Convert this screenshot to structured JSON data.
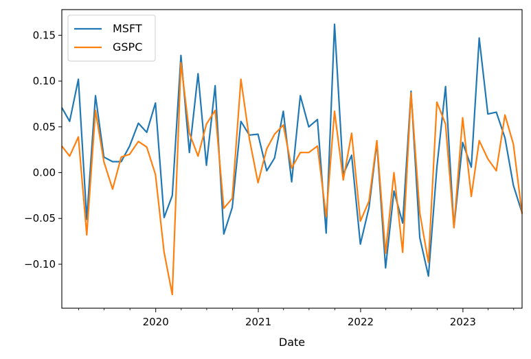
{
  "chart_data": {
    "type": "line",
    "xlabel": "Date",
    "ylabel": "",
    "ylim": [
      -0.148,
      0.178
    ],
    "xlim": [
      "2019-01-31",
      "2023-07-31"
    ],
    "x_tick_labels": [
      {
        "date": "2020-01-01",
        "label": "2020"
      },
      {
        "date": "2021-01-01",
        "label": "2021"
      },
      {
        "date": "2022-01-01",
        "label": "2022"
      },
      {
        "date": "2023-01-01",
        "label": "2023"
      }
    ],
    "y_ticks": [
      -0.1,
      -0.05,
      0.0,
      0.05,
      0.1,
      0.15
    ],
    "y_tick_labels": [
      "−0.10",
      "−0.05",
      "0.00",
      "0.05",
      "0.10",
      "0.15"
    ],
    "legend_position": "top-left",
    "grid": false,
    "x": [
      "2019-01-31",
      "2019-02-28",
      "2019-03-31",
      "2019-04-30",
      "2019-05-31",
      "2019-06-30",
      "2019-07-31",
      "2019-08-31",
      "2019-09-30",
      "2019-10-31",
      "2019-11-30",
      "2019-12-31",
      "2020-01-31",
      "2020-02-29",
      "2020-03-31",
      "2020-04-30",
      "2020-05-31",
      "2020-06-30",
      "2020-07-31",
      "2020-08-31",
      "2020-09-30",
      "2020-10-31",
      "2020-11-30",
      "2020-12-31",
      "2021-01-31",
      "2021-02-28",
      "2021-03-31",
      "2021-04-30",
      "2021-05-31",
      "2021-06-30",
      "2021-07-31",
      "2021-08-31",
      "2021-09-30",
      "2021-10-31",
      "2021-11-30",
      "2021-12-31",
      "2022-01-31",
      "2022-02-28",
      "2022-03-31",
      "2022-04-30",
      "2022-05-31",
      "2022-06-30",
      "2022-07-31",
      "2022-08-31",
      "2022-09-30",
      "2022-10-31",
      "2022-11-30",
      "2022-12-31",
      "2023-01-31",
      "2023-02-28",
      "2023-03-31",
      "2023-04-30",
      "2023-05-31",
      "2023-06-30",
      "2023-07-31"
    ],
    "series": [
      {
        "name": "MSFT",
        "color": "#1f77b4",
        "values": [
          0.071,
          0.056,
          0.102,
          -0.051,
          0.084,
          0.017,
          0.012,
          0.012,
          0.029,
          0.054,
          0.044,
          0.076,
          -0.049,
          -0.025,
          0.128,
          0.022,
          0.108,
          0.008,
          0.095,
          -0.067,
          -0.038,
          0.056,
          0.041,
          0.042,
          0.002,
          0.016,
          0.067,
          -0.01,
          0.084,
          0.05,
          0.058,
          -0.066,
          0.162,
          -0.002,
          0.019,
          -0.078,
          -0.038,
          0.033,
          -0.104,
          -0.02,
          -0.055,
          0.089,
          -0.071,
          -0.113,
          0.006,
          0.094,
          -0.06,
          0.033,
          0.006,
          0.147,
          0.064,
          0.066,
          0.038,
          -0.014,
          -0.044
        ]
      },
      {
        "name": "GSPC",
        "color": "#ff7f0e",
        "values": [
          0.029,
          0.018,
          0.039,
          -0.068,
          0.068,
          0.012,
          -0.018,
          0.017,
          0.02,
          0.034,
          0.028,
          -0.002,
          -0.087,
          -0.133,
          0.12,
          0.043,
          0.018,
          0.053,
          0.068,
          -0.039,
          -0.028,
          0.102,
          0.037,
          -0.011,
          0.026,
          0.042,
          0.052,
          0.005,
          0.022,
          0.022,
          0.029,
          -0.048,
          0.067,
          -0.008,
          0.043,
          -0.053,
          -0.031,
          0.035,
          -0.088,
          0.0,
          -0.087,
          0.087,
          -0.044,
          -0.098,
          0.077,
          0.053,
          -0.06,
          0.06,
          -0.026,
          0.035,
          0.015,
          0.002,
          0.063,
          0.031,
          -0.045
        ]
      }
    ]
  }
}
